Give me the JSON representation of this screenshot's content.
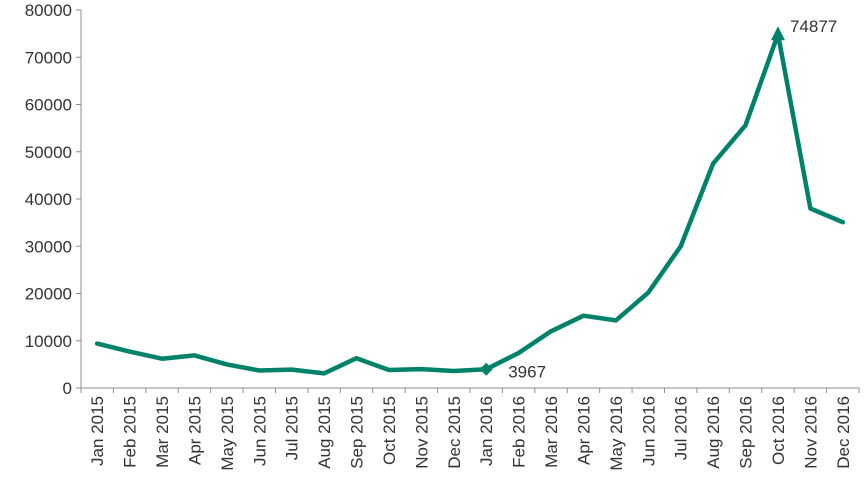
{
  "colors": {
    "line": "#00826A",
    "axis": "#8C8C8C",
    "text": "#333333"
  },
  "chart_data": {
    "type": "line",
    "title": "",
    "xlabel": "",
    "ylabel": "",
    "categories": [
      "Jan 2015",
      "Feb 2015",
      "Mar 2015",
      "Apr 2015",
      "May 2015",
      "Jun 2015",
      "Jul 2015",
      "Aug 2015",
      "Sep 2015",
      "Oct 2015",
      "Nov 2015",
      "Dec 2015",
      "Jan 2016",
      "Feb 2016",
      "Mar 2016",
      "Apr 2016",
      "May 2016",
      "Jun 2016",
      "Jul 2016",
      "Aug 2016",
      "Sep 2016",
      "Oct 2016",
      "Nov 2016",
      "Dec 2016"
    ],
    "values": [
      9400,
      7700,
      6200,
      6900,
      5000,
      3700,
      3900,
      3100,
      6300,
      3800,
      4000,
      3600,
      3967,
      7400,
      12000,
      15300,
      14300,
      20200,
      30000,
      47500,
      55600,
      74877,
      38000,
      35100
    ],
    "ylim": [
      0,
      80000
    ],
    "yticks": [
      0,
      10000,
      20000,
      30000,
      40000,
      50000,
      60000,
      70000,
      80000
    ],
    "grid": false,
    "legend": "none",
    "annotations": [
      {
        "category": "Jan 2016",
        "value": 3967,
        "text": "3967",
        "marker": "diamond"
      },
      {
        "category": "Oct 2016",
        "value": 74877,
        "text": "74877",
        "marker": "triangle"
      }
    ]
  }
}
